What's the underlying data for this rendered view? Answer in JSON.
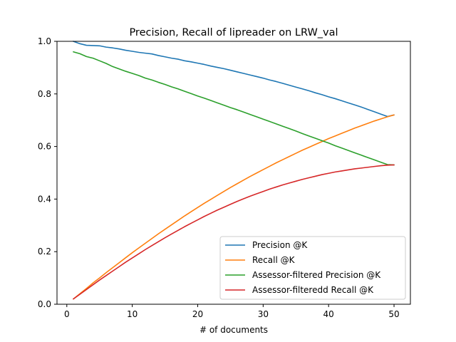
{
  "chart_data": {
    "type": "line",
    "title": "Precision, Recall of lipreader on LRW_val",
    "xlabel": "# of documents",
    "ylabel": "",
    "xlim": [
      -1.5,
      52.5
    ],
    "ylim": [
      0.0,
      1.0
    ],
    "xticks": [
      0,
      10,
      20,
      30,
      40,
      50
    ],
    "yticks": [
      0.0,
      0.2,
      0.4,
      0.6,
      0.8,
      1.0
    ],
    "xtick_labels": [
      "0",
      "10",
      "20",
      "30",
      "40",
      "50"
    ],
    "ytick_labels": [
      "0.0",
      "0.2",
      "0.4",
      "0.6",
      "0.8",
      "1.0"
    ],
    "grid": false,
    "legend_position": "lower-right",
    "x": [
      1,
      2,
      3,
      4,
      5,
      6,
      7,
      8,
      9,
      10,
      11,
      12,
      13,
      14,
      15,
      16,
      17,
      18,
      19,
      20,
      21,
      22,
      23,
      24,
      25,
      26,
      27,
      28,
      29,
      30,
      31,
      32,
      33,
      34,
      35,
      36,
      37,
      38,
      39,
      40,
      41,
      42,
      43,
      44,
      45,
      46,
      47,
      48,
      49,
      50
    ],
    "series": [
      {
        "name": "Precision @K",
        "color": "#1f77b4",
        "values": [
          1.0,
          0.991,
          0.985,
          0.984,
          0.983,
          0.978,
          0.975,
          0.971,
          0.966,
          0.962,
          0.958,
          0.955,
          0.952,
          0.946,
          0.941,
          0.936,
          0.932,
          0.926,
          0.922,
          0.917,
          0.912,
          0.906,
          0.901,
          0.896,
          0.89,
          0.884,
          0.878,
          0.872,
          0.866,
          0.86,
          0.853,
          0.847,
          0.84,
          0.833,
          0.826,
          0.819,
          0.812,
          0.804,
          0.797,
          0.789,
          0.782,
          0.774,
          0.766,
          0.758,
          0.75,
          0.741,
          0.732,
          0.723,
          0.714,
          0.72
        ]
      },
      {
        "name": "Recall @K",
        "color": "#ff7f0e",
        "values": [
          0.02,
          0.04,
          0.06,
          0.081,
          0.1,
          0.12,
          0.139,
          0.158,
          0.177,
          0.196,
          0.214,
          0.232,
          0.25,
          0.268,
          0.285,
          0.302,
          0.319,
          0.336,
          0.352,
          0.368,
          0.384,
          0.399,
          0.414,
          0.429,
          0.444,
          0.458,
          0.472,
          0.486,
          0.499,
          0.512,
          0.525,
          0.538,
          0.55,
          0.562,
          0.574,
          0.586,
          0.597,
          0.608,
          0.619,
          0.63,
          0.64,
          0.65,
          0.66,
          0.67,
          0.679,
          0.688,
          0.697,
          0.705,
          0.713,
          0.72
        ]
      },
      {
        "name": "Assessor-filtered Precision @K",
        "color": "#2ca02c",
        "values": [
          0.96,
          0.953,
          0.942,
          0.936,
          0.926,
          0.916,
          0.904,
          0.895,
          0.886,
          0.878,
          0.87,
          0.86,
          0.853,
          0.844,
          0.836,
          0.827,
          0.819,
          0.81,
          0.801,
          0.792,
          0.784,
          0.775,
          0.766,
          0.757,
          0.748,
          0.74,
          0.731,
          0.722,
          0.713,
          0.704,
          0.695,
          0.686,
          0.677,
          0.668,
          0.659,
          0.649,
          0.64,
          0.631,
          0.622,
          0.613,
          0.603,
          0.594,
          0.585,
          0.576,
          0.567,
          0.558,
          0.549,
          0.54,
          0.531,
          0.53
        ]
      },
      {
        "name": "Assessor-filteredd Recall @K",
        "color": "#d62728",
        "values": [
          0.02,
          0.038,
          0.056,
          0.074,
          0.092,
          0.109,
          0.126,
          0.143,
          0.16,
          0.176,
          0.192,
          0.208,
          0.223,
          0.238,
          0.253,
          0.267,
          0.281,
          0.295,
          0.308,
          0.321,
          0.334,
          0.346,
          0.358,
          0.369,
          0.38,
          0.391,
          0.401,
          0.411,
          0.42,
          0.429,
          0.438,
          0.446,
          0.454,
          0.461,
          0.468,
          0.475,
          0.481,
          0.487,
          0.493,
          0.498,
          0.503,
          0.507,
          0.511,
          0.515,
          0.518,
          0.521,
          0.524,
          0.527,
          0.529,
          0.53
        ]
      }
    ]
  }
}
